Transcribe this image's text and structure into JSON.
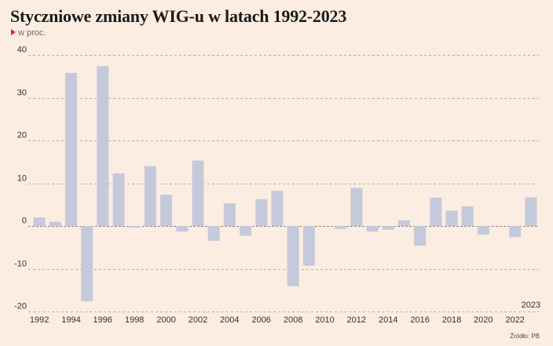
{
  "title": "Styczniowe zmiany WIG-u w latach 1992-2023",
  "subtitle": "w proc.",
  "source": "Źródło: PB",
  "colors": {
    "background": "#fbede1",
    "bar": "#c5cada",
    "grid": "#b9afa6",
    "marker": "#e2232a"
  },
  "chart_data": {
    "type": "bar",
    "title": "Styczniowe zmiany WIG-u w latach 1992-2023",
    "subtitle": "w proc.",
    "xlabel": "",
    "ylabel": "",
    "ylim": [
      -20,
      40
    ],
    "yticks": [
      40,
      30,
      20,
      10,
      0,
      -10,
      -20
    ],
    "ytick_labels": [
      "40",
      "30",
      "20",
      "10",
      "0",
      "-10",
      "-20"
    ],
    "grid": true,
    "categories": [
      "1992",
      "1993",
      "1994",
      "1995",
      "1996",
      "1997",
      "1998",
      "1999",
      "2000",
      "2001",
      "2002",
      "2003",
      "2004",
      "2005",
      "2006",
      "2007",
      "2008",
      "2009",
      "2010",
      "2011",
      "2012",
      "2013",
      "2014",
      "2015",
      "2016",
      "2017",
      "2018",
      "2019",
      "2020",
      "2021",
      "2022",
      "2023"
    ],
    "values": [
      2.0,
      1.0,
      35.8,
      -17.6,
      37.4,
      12.3,
      -0.4,
      14.0,
      7.3,
      -1.3,
      15.3,
      -3.5,
      5.3,
      -2.3,
      6.3,
      8.2,
      -14.1,
      -9.3,
      0.0,
      -0.7,
      8.9,
      -1.3,
      -0.9,
      1.3,
      -4.6,
      6.6,
      3.6,
      4.6,
      -2.0,
      0.0,
      -2.6,
      6.7
    ],
    "xtick_labels": [
      "1992",
      "1994",
      "1996",
      "1998",
      "2000",
      "2002",
      "2004",
      "2006",
      "2008",
      "2010",
      "2012",
      "2014",
      "2016",
      "2018",
      "2020",
      "2022"
    ],
    "annotations": [
      "2023"
    ]
  }
}
